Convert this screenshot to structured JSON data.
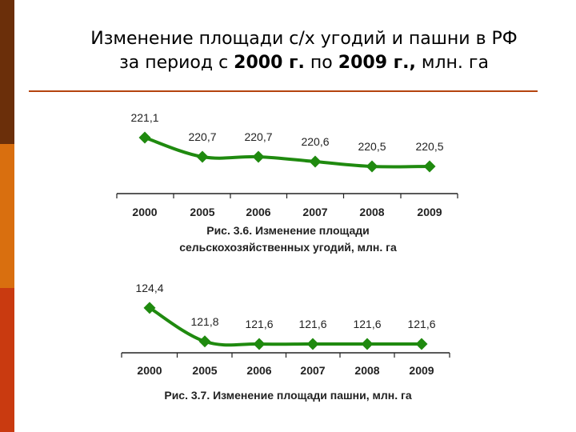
{
  "title": {
    "line1": "Изменение площади с/х угодий и пашни в РФ",
    "line2_a": "за период с ",
    "line2_b": "2000 г.",
    "line2_c": " по ",
    "line2_d": "2009 г.,",
    "line2_e": " млн. га"
  },
  "colors": {
    "line": "#1f8a0f",
    "marker": "#1f8a0f",
    "axis": "#222222",
    "accent_rule": "#b5440e"
  },
  "chart_data": [
    {
      "type": "line",
      "title": "Рис. 3.6. Изменение площади сельскохозяйственных угодий, млн. га",
      "title_line1": "Рис. 3.6. Изменение площади",
      "title_line2": "сельскохозяйственных угодий, млн. га",
      "categories": [
        "2000",
        "2005",
        "2006",
        "2007",
        "2008",
        "2009"
      ],
      "values": [
        221.1,
        220.7,
        220.7,
        220.6,
        220.5,
        220.5
      ],
      "value_labels": [
        "221,1",
        "220,7",
        "220,7",
        "220,6",
        "220,5",
        "220,5"
      ],
      "ylim": [
        220.1,
        221.3
      ],
      "grid": false,
      "marker": "diamond"
    },
    {
      "type": "line",
      "title": "Рис. 3.7. Изменение площади пашни, млн. га",
      "categories": [
        "2000",
        "2005",
        "2006",
        "2007",
        "2008",
        "2009"
      ],
      "values": [
        124.4,
        121.8,
        121.6,
        121.6,
        121.6,
        121.6
      ],
      "value_labels": [
        "124,4",
        "121,8",
        "121,6",
        "121,6",
        "121,6",
        "121,6"
      ],
      "ylim": [
        121.6,
        124.7
      ],
      "grid": false,
      "marker": "diamond"
    }
  ]
}
